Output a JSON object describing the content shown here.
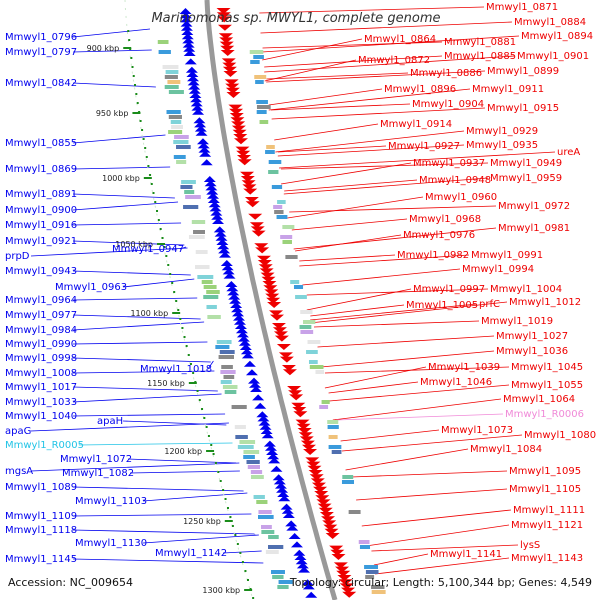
{
  "title": "Marinomonas sp. MWYL1, complete genome",
  "accession": "Accession: NC_009654",
  "summary": "Topology: circular; Length: 5,100,344 bp; Genes: 4,549",
  "colors": {
    "forward": "#0000ee",
    "reverse": "#ee0000",
    "rna_forward": "#22c4e6",
    "rna_reverse": "#f08ad8",
    "backbone": "#999999",
    "ticks": "#1a8c1a"
  },
  "kbp_ticks": [
    "900 kbp",
    "950 kbp",
    "1000 kbp",
    "1050 kbp",
    "1100 kbp",
    "1150 kbp",
    "1200 kbp",
    "1250 kbp",
    "1300 kbp"
  ],
  "left_labels": [
    "Mmwyl1_0796",
    "Mmwyl1_0797",
    "Mmwyl1_0842",
    "Mmwyl1_0855",
    "Mmwyl1_0869",
    "Mmwyl1_0891",
    "Mmwyl1_0900",
    "Mmwyl1_0916",
    "Mmwyl1_0921",
    "prpD",
    "Mmwyl1_0947",
    "Mmwyl1_0943",
    "Mmwyl1_0963",
    "Mmwyl1_0964",
    "Mmwyl1_0977",
    "Mmwyl1_0984",
    "Mmwyl1_0990",
    "Mmwyl1_0998",
    "Mmwyl1_1018",
    "Mmwyl1_1008",
    "Mmwyl1_1017",
    "Mmwyl1_1033",
    "Mmwyl1_1040",
    "apaH",
    "apaG",
    "Mmwyl1_R0005",
    "Mmwyl1_1072",
    "mgsA",
    "Mmwyl1_1082",
    "Mmwyl1_1089",
    "Mmwyl1_1103",
    "Mmwyl1_1109",
    "Mmwyl1_1118",
    "Mmwyl1_1130",
    "Mmwyl1_1142",
    "Mmwyl1_1145"
  ],
  "right_labels": [
    "Mmwyl1_0871",
    "Mmwyl1_0884",
    "Mmwyl1_0894",
    "Mmwyl1_0864",
    "Mmwyl1_0881",
    "Mmwyl1_0885",
    "Mmwyl1_0901",
    "Mmwyl1_0872",
    "Mmwyl1_0886",
    "Mmwyl1_0899",
    "Mmwyl1_0896",
    "Mmwyl1_0911",
    "Mmwyl1_0904",
    "Mmwyl1_0915",
    "Mmwyl1_0914",
    "Mmwyl1_0929",
    "Mmwyl1_0927",
    "Mmwyl1_0935",
    "ureA",
    "Mmwyl1_0937",
    "Mmwyl1_0949",
    "Mmwyl1_0948",
    "Mmwyl1_0959",
    "Mmwyl1_0960",
    "Mmwyl1_0972",
    "Mmwyl1_0968",
    "Mmwyl1_0976",
    "Mmwyl1_0981",
    "Mmwyl1_0982",
    "Mmwyl1_0991",
    "Mmwyl1_0994",
    "Mmwyl1_0997",
    "Mmwyl1_1004",
    "Mmwyl1_1005",
    "prfC",
    "Mmwyl1_1012",
    "Mmwyl1_1019",
    "Mmwyl1_1027",
    "Mmwyl1_1036",
    "Mmwyl1_1039",
    "Mmwyl1_1045",
    "Mmwyl1_1046",
    "Mmwyl1_1055",
    "Mmwyl1_1064",
    "Mmwyl1_R0006",
    "Mmwyl1_1073",
    "Mmwyl1_1080",
    "Mmwyl1_1084",
    "Mmwyl1_1095",
    "Mmwyl1_1105",
    "Mmwyl1_1111",
    "Mmwyl1_1121",
    "lysS",
    "Mmwyl1_1141",
    "Mmwyl1_1143"
  ]
}
